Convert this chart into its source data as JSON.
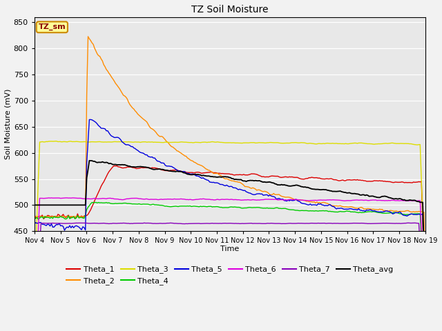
{
  "title": "TZ Soil Moisture",
  "xlabel": "Time",
  "ylabel": "Soil Moisture (mV)",
  "ylim": [
    450,
    860
  ],
  "yticks": [
    450,
    500,
    550,
    600,
    650,
    700,
    750,
    800,
    850
  ],
  "x_labels": [
    "Nov 4",
    "Nov 5",
    "Nov 6",
    "Nov 7",
    "Nov 8",
    "Nov 9",
    "Nov 10",
    "Nov 11",
    "Nov 12",
    "Nov 13",
    "Nov 14",
    "Nov 15",
    "Nov 16",
    "Nov 17",
    "Nov 18",
    "Nov 19"
  ],
  "num_points": 300,
  "background_color": "#e8e8e8",
  "series_colors": {
    "Theta_1": "#dd0000",
    "Theta_2": "#ff8c00",
    "Theta_3": "#dddd00",
    "Theta_4": "#00cc00",
    "Theta_5": "#0000dd",
    "Theta_6": "#dd00dd",
    "Theta_7": "#8800bb",
    "Theta_avg": "#000000"
  },
  "annotation_text": "TZ_sm",
  "annotation_bg": "#ffff99",
  "annotation_border": "#cc8800"
}
